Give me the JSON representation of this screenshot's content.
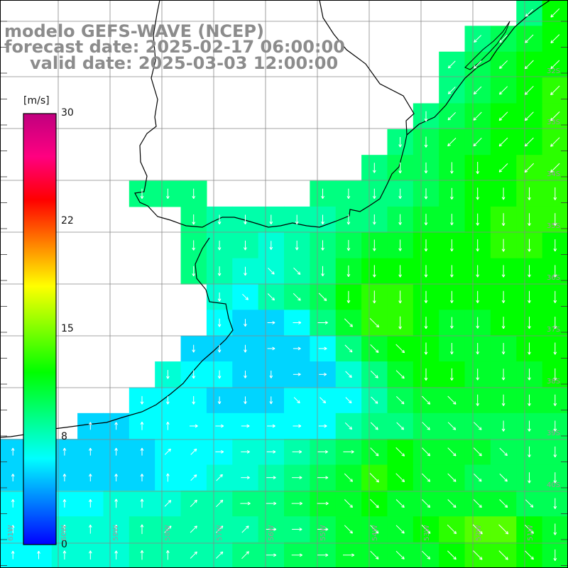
{
  "title": {
    "line1": "modelo GEFS-WAVE (NCEP)",
    "line2": "forecast date: 2025-02-17 06:00:00",
    "line3": "valid date: 2025-03-03 12:00:00"
  },
  "colorbar": {
    "unit": "[m/s]",
    "ticks": [
      "30",
      "22",
      "15",
      "8",
      "0"
    ],
    "tick_values": [
      30,
      22,
      15,
      8,
      0
    ],
    "range": [
      0,
      30
    ],
    "colors": [
      "#0000ff",
      "#0080ff",
      "#00ffff",
      "#00ff80",
      "#00ff00",
      "#80ff00",
      "#ffff00",
      "#ff8000",
      "#ff0000",
      "#ff0080",
      "#c0007f"
    ]
  },
  "latitude_labels": [
    "32S",
    "33S",
    "34S",
    "35S",
    "36S",
    "37S",
    "38S",
    "39S",
    "40S"
  ],
  "longitude_labels": [
    "61W",
    "60W",
    "59W",
    "58W",
    "57W",
    "56W",
    "55W",
    "54W",
    "53W",
    "52W",
    "51W"
  ],
  "extent": {
    "lon": [
      -61.5,
      -50.7
    ],
    "lat": [
      -41.0,
      -30.5
    ]
  },
  "field": {
    "variable": "wind speed and direction",
    "unit": "m/s",
    "rows": 22,
    "cols": 22,
    "resolution_deg": 0.5,
    "speed": [
      [
        0,
        0,
        0,
        0,
        0,
        0,
        0,
        0,
        0,
        0,
        0,
        0,
        0,
        0,
        0,
        0,
        0,
        0,
        0,
        0,
        9,
        12
      ],
      [
        0,
        0,
        0,
        0,
        0,
        0,
        0,
        0,
        0,
        0,
        0,
        0,
        0,
        0,
        0,
        0,
        0,
        0,
        9,
        10,
        11,
        12
      ],
      [
        0,
        0,
        0,
        0,
        0,
        0,
        0,
        0,
        0,
        0,
        0,
        0,
        0,
        0,
        0,
        0,
        0,
        9,
        10,
        11,
        12,
        12
      ],
      [
        0,
        0,
        0,
        0,
        0,
        0,
        0,
        0,
        0,
        0,
        0,
        0,
        0,
        0,
        0,
        0,
        0,
        9,
        10,
        11,
        12,
        13
      ],
      [
        0,
        0,
        0,
        0,
        0,
        0,
        0,
        0,
        0,
        0,
        0,
        0,
        0,
        0,
        0,
        0,
        9,
        10,
        11,
        12,
        12,
        13
      ],
      [
        0,
        0,
        0,
        0,
        0,
        0,
        0,
        0,
        0,
        0,
        0,
        0,
        0,
        0,
        0,
        9,
        10,
        11,
        11,
        12,
        12,
        13
      ],
      [
        0,
        0,
        0,
        0,
        0,
        0,
        0,
        0,
        0,
        0,
        0,
        0,
        0,
        0,
        9,
        10,
        10,
        11,
        12,
        12,
        13,
        13
      ],
      [
        0,
        0,
        0,
        0,
        0,
        9,
        9,
        9,
        0,
        0,
        0,
        0,
        9,
        9,
        9,
        9,
        10,
        11,
        12,
        12,
        13,
        13
      ],
      [
        0,
        0,
        0,
        0,
        0,
        0,
        0,
        9,
        8,
        8,
        8,
        8,
        8,
        9,
        9,
        10,
        11,
        11,
        12,
        13,
        13,
        13
      ],
      [
        0,
        0,
        0,
        0,
        0,
        0,
        0,
        9,
        8,
        8,
        7,
        8,
        9,
        10,
        11,
        11,
        12,
        12,
        12,
        13,
        13,
        12
      ],
      [
        0,
        0,
        0,
        0,
        0,
        0,
        0,
        9,
        8,
        7,
        7,
        8,
        9,
        11,
        12,
        12,
        12,
        12,
        12,
        12,
        12,
        12
      ],
      [
        0,
        0,
        0,
        0,
        0,
        0,
        0,
        0,
        7,
        6,
        8,
        9,
        10,
        12,
        13,
        13,
        12,
        12,
        12,
        12,
        12,
        12
      ],
      [
        0,
        0,
        0,
        0,
        0,
        0,
        0,
        0,
        6,
        5,
        5,
        6,
        9,
        11,
        13,
        13,
        12,
        11,
        11,
        12,
        12,
        12
      ],
      [
        0,
        0,
        0,
        0,
        0,
        0,
        0,
        5,
        5,
        5,
        5,
        5,
        6,
        9,
        11,
        12,
        12,
        11,
        11,
        11,
        12,
        12
      ],
      [
        0,
        0,
        0,
        0,
        0,
        0,
        7,
        6,
        6,
        5,
        5,
        5,
        5,
        7,
        9,
        11,
        12,
        12,
        11,
        11,
        11,
        12
      ],
      [
        0,
        0,
        0,
        0,
        0,
        6,
        6,
        6,
        5,
        5,
        5,
        6,
        6,
        6,
        8,
        10,
        11,
        11,
        11,
        11,
        11,
        11
      ],
      [
        0,
        0,
        0,
        5,
        5,
        6,
        6,
        6,
        6,
        6,
        6,
        6,
        6,
        8,
        9,
        9,
        10,
        10,
        10,
        10,
        10,
        10
      ],
      [
        5,
        5,
        5,
        5,
        5,
        5,
        6,
        6,
        6,
        7,
        7,
        8,
        9,
        10,
        11,
        12,
        11,
        11,
        11,
        10,
        10,
        10
      ],
      [
        5,
        5,
        5,
        5,
        5,
        5,
        6,
        6,
        7,
        7,
        8,
        9,
        10,
        11,
        13,
        12,
        11,
        11,
        10,
        10,
        10,
        10
      ],
      [
        6,
        6,
        6,
        6,
        7,
        7,
        7,
        8,
        8,
        9,
        9,
        10,
        11,
        11,
        12,
        11,
        11,
        11,
        11,
        11,
        10,
        10
      ],
      [
        6,
        6,
        7,
        7,
        7,
        8,
        8,
        8,
        8,
        8,
        9,
        9,
        10,
        11,
        11,
        11,
        12,
        13,
        14,
        14,
        12,
        11
      ],
      [
        6,
        6,
        7,
        7,
        7,
        8,
        8,
        8,
        8,
        9,
        9,
        10,
        10,
        11,
        11,
        11,
        11,
        12,
        13,
        13,
        12,
        11
      ]
    ],
    "direction": [
      [
        "",
        "",
        "",
        "",
        "",
        "",
        "",
        "",
        "",
        "",
        "",
        "",
        "",
        "",
        "",
        "",
        "",
        "",
        "",
        "",
        "SW",
        "SW"
      ],
      [
        "",
        "",
        "",
        "",
        "",
        "",
        "",
        "",
        "",
        "",
        "",
        "",
        "",
        "",
        "",
        "",
        "",
        "",
        "SW",
        "SW",
        "SW",
        "SW"
      ],
      [
        "",
        "",
        "",
        "",
        "",
        "",
        "",
        "",
        "",
        "",
        "",
        "",
        "",
        "",
        "",
        "",
        "",
        "SW",
        "SW",
        "SW",
        "SW",
        "SW"
      ],
      [
        "",
        "",
        "",
        "",
        "",
        "",
        "",
        "",
        "",
        "",
        "",
        "",
        "",
        "",
        "",
        "",
        "",
        "SW",
        "SW",
        "SW",
        "SW",
        "SW"
      ],
      [
        "",
        "",
        "",
        "",
        "",
        "",
        "",
        "",
        "",
        "",
        "",
        "",
        "",
        "",
        "",
        "",
        "S",
        "SW",
        "SW",
        "SW",
        "SW",
        "SW"
      ],
      [
        "",
        "",
        "",
        "",
        "",
        "",
        "",
        "",
        "",
        "",
        "",
        "",
        "",
        "",
        "",
        "S",
        "S",
        "SW",
        "SW",
        "SW",
        "SW",
        "SW"
      ],
      [
        "",
        "",
        "",
        "",
        "",
        "",
        "",
        "",
        "",
        "",
        "",
        "",
        "",
        "",
        "S",
        "S",
        "S",
        "S",
        "S",
        "SW",
        "SW",
        "SW"
      ],
      [
        "",
        "",
        "",
        "",
        "",
        "S",
        "S",
        "S",
        "",
        "",
        "",
        "",
        "S",
        "S",
        "S",
        "S",
        "S",
        "S",
        "S",
        "S",
        "S",
        "S"
      ],
      [
        "",
        "",
        "",
        "",
        "",
        "",
        "",
        "S",
        "S",
        "S",
        "S",
        "S",
        "S",
        "S",
        "S",
        "S",
        "S",
        "S",
        "S",
        "S",
        "S",
        "S"
      ],
      [
        "",
        "",
        "",
        "",
        "",
        "",
        "",
        "S",
        "S",
        "S",
        "S",
        "S",
        "S",
        "S",
        "S",
        "S",
        "S",
        "S",
        "S",
        "S",
        "S",
        "S"
      ],
      [
        "",
        "",
        "",
        "",
        "",
        "",
        "",
        "S",
        "S",
        "S",
        "SE",
        "SE",
        "S",
        "S",
        "S",
        "S",
        "S",
        "S",
        "S",
        "S",
        "S",
        "S"
      ],
      [
        "",
        "",
        "",
        "",
        "",
        "",
        "",
        "",
        "S",
        "SE",
        "SE",
        "SE",
        "SE",
        "S",
        "S",
        "S",
        "S",
        "S",
        "S",
        "S",
        "S",
        "S"
      ],
      [
        "",
        "",
        "",
        "",
        "",
        "",
        "",
        "",
        "S",
        "S",
        "E",
        "E",
        "E",
        "SE",
        "SE",
        "S",
        "S",
        "S",
        "S",
        "S",
        "S",
        "S"
      ],
      [
        "",
        "",
        "",
        "",
        "",
        "",
        "",
        "S",
        "S",
        "S",
        "E",
        "E",
        "E",
        "SE",
        "SE",
        "SE",
        "S",
        "S",
        "S",
        "S",
        "S",
        "S"
      ],
      [
        "",
        "",
        "",
        "",
        "",
        "",
        "S",
        "S",
        "S",
        "S",
        "S",
        "E",
        "E",
        "SE",
        "SE",
        "SE",
        "S",
        "S",
        "S",
        "S",
        "S",
        "S"
      ],
      [
        "",
        "",
        "",
        "",
        "",
        "S",
        "S",
        "S",
        "S",
        "S",
        "S",
        "SE",
        "SE",
        "SE",
        "SE",
        "SE",
        "SE",
        "SE",
        "S",
        "S",
        "S",
        "S"
      ],
      [
        "",
        "",
        "",
        "N",
        "N",
        "N",
        "N",
        "E",
        "E",
        "E",
        "E",
        "E",
        "E",
        "SE",
        "SE",
        "SE",
        "SE",
        "SE",
        "SE",
        "S",
        "S",
        "S"
      ],
      [
        "N",
        "N",
        "N",
        "N",
        "N",
        "N",
        "NE",
        "NE",
        "E",
        "E",
        "E",
        "E",
        "E",
        "E",
        "SE",
        "SE",
        "SE",
        "SE",
        "SE",
        "SE",
        "S",
        "S"
      ],
      [
        "N",
        "N",
        "N",
        "N",
        "N",
        "N",
        "N",
        "NE",
        "NE",
        "E",
        "E",
        "E",
        "E",
        "SE",
        "SE",
        "SE",
        "SE",
        "SE",
        "SE",
        "SE",
        "S",
        "S"
      ],
      [
        "N",
        "N",
        "N",
        "N",
        "N",
        "N",
        "NE",
        "NE",
        "NE",
        "E",
        "E",
        "E",
        "E",
        "SE",
        "SE",
        "SE",
        "SE",
        "SE",
        "SE",
        "SE",
        "SE",
        "S"
      ],
      [
        "N",
        "N",
        "N",
        "N",
        "N",
        "N",
        "NE",
        "NE",
        "NE",
        "NE",
        "E",
        "E",
        "E",
        "SE",
        "SE",
        "SE",
        "SE",
        "SE",
        "SE",
        "SE",
        "SE",
        "S"
      ],
      [
        "N",
        "N",
        "N",
        "N",
        "N",
        "N",
        "N",
        "NE",
        "NE",
        "NE",
        "E",
        "E",
        "E",
        "E",
        "SE",
        "SE",
        "SE",
        "SE",
        "SE",
        "SE",
        "SE",
        "S"
      ]
    ]
  }
}
